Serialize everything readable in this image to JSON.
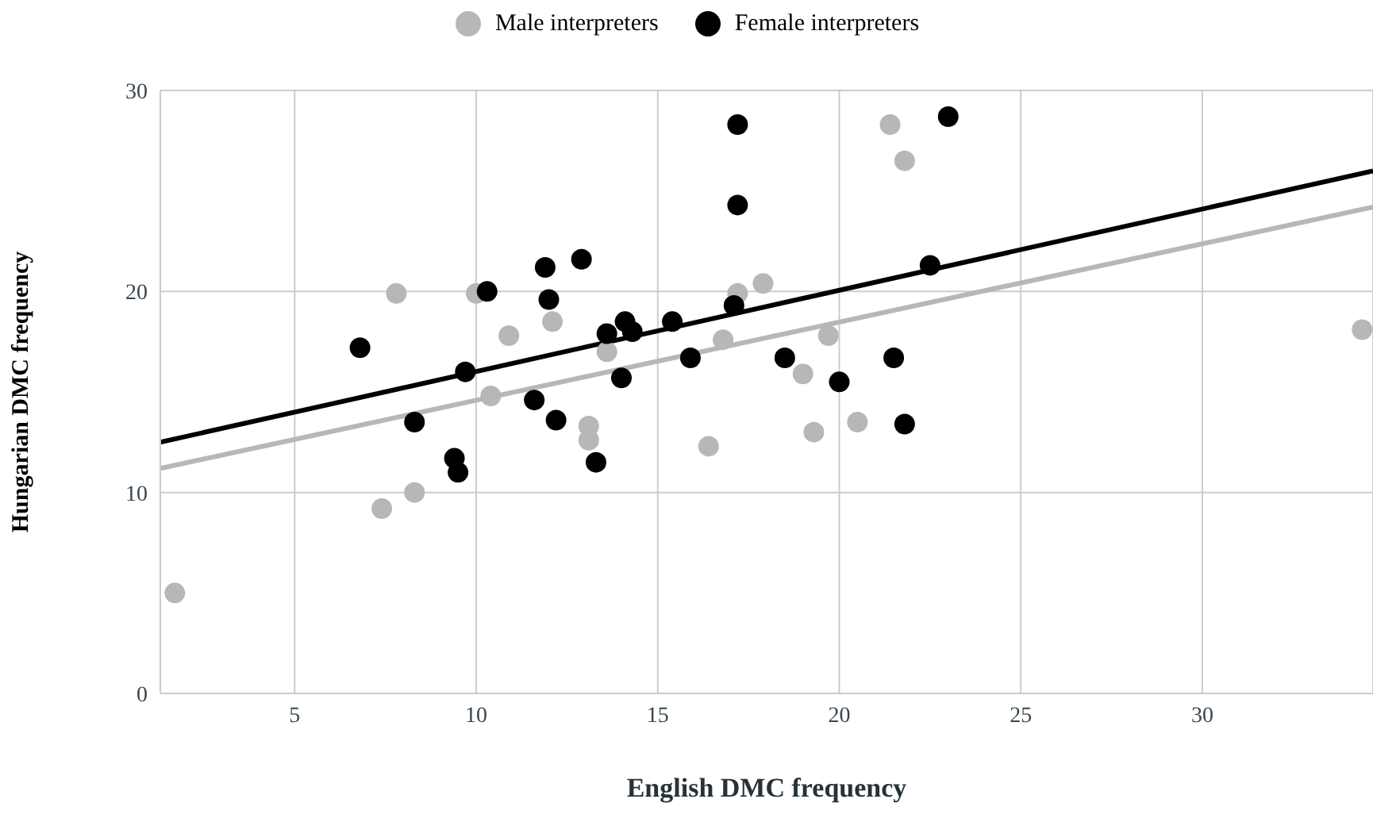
{
  "chart_data": {
    "type": "scatter",
    "xlabel": "English DMC frequency",
    "ylabel": "Hungarian DMC frequency",
    "xlim": [
      1.3,
      34.7
    ],
    "ylim": [
      0,
      30
    ],
    "xticks": [
      5,
      10,
      15,
      20,
      25,
      30
    ],
    "yticks": [
      0,
      10,
      20,
      30
    ],
    "grid": true,
    "legend": "top",
    "marker": "circle",
    "series": [
      {
        "name": "Male interpreters",
        "color": "#b7b7b7",
        "x": [
          1.7,
          7.4,
          8.3,
          7.8,
          10.0,
          10.9,
          10.4,
          12.1,
          13.1,
          13.1,
          13.6,
          16.4,
          16.8,
          17.2,
          17.9,
          19.0,
          19.3,
          19.7,
          20.5,
          21.4,
          21.8,
          34.4
        ],
        "values": [
          5.0,
          9.2,
          10.0,
          19.9,
          19.9,
          17.8,
          14.8,
          18.5,
          13.3,
          12.6,
          17.0,
          12.3,
          17.6,
          19.9,
          20.4,
          15.9,
          13.0,
          17.8,
          13.5,
          28.3,
          26.5,
          18.1
        ]
      },
      {
        "name": "Female interpreters",
        "color": "#000000",
        "x": [
          6.8,
          8.3,
          9.4,
          9.5,
          9.7,
          10.3,
          11.6,
          11.9,
          12.0,
          12.2,
          12.9,
          13.3,
          13.6,
          14.0,
          14.1,
          14.3,
          15.4,
          15.9,
          17.1,
          17.2,
          17.2,
          18.5,
          20.0,
          21.5,
          21.8,
          22.5,
          23.0
        ],
        "values": [
          17.2,
          13.5,
          11.7,
          11.0,
          16.0,
          20.0,
          14.6,
          21.2,
          19.6,
          13.6,
          21.6,
          11.5,
          17.9,
          15.7,
          18.5,
          18.0,
          18.5,
          16.7,
          19.3,
          24.3,
          28.3,
          16.7,
          15.5,
          16.7,
          13.4,
          21.3,
          28.7
        ]
      },
      {
        "type": "line",
        "marker": "none",
        "color": "#b7b7b7",
        "x": [
          1.3,
          34.7
        ],
        "values": [
          11.2,
          24.2
        ]
      },
      {
        "type": "line",
        "marker": "none",
        "color": "#000000",
        "x": [
          1.3,
          34.7
        ],
        "values": [
          12.5,
          26.0
        ]
      }
    ]
  }
}
